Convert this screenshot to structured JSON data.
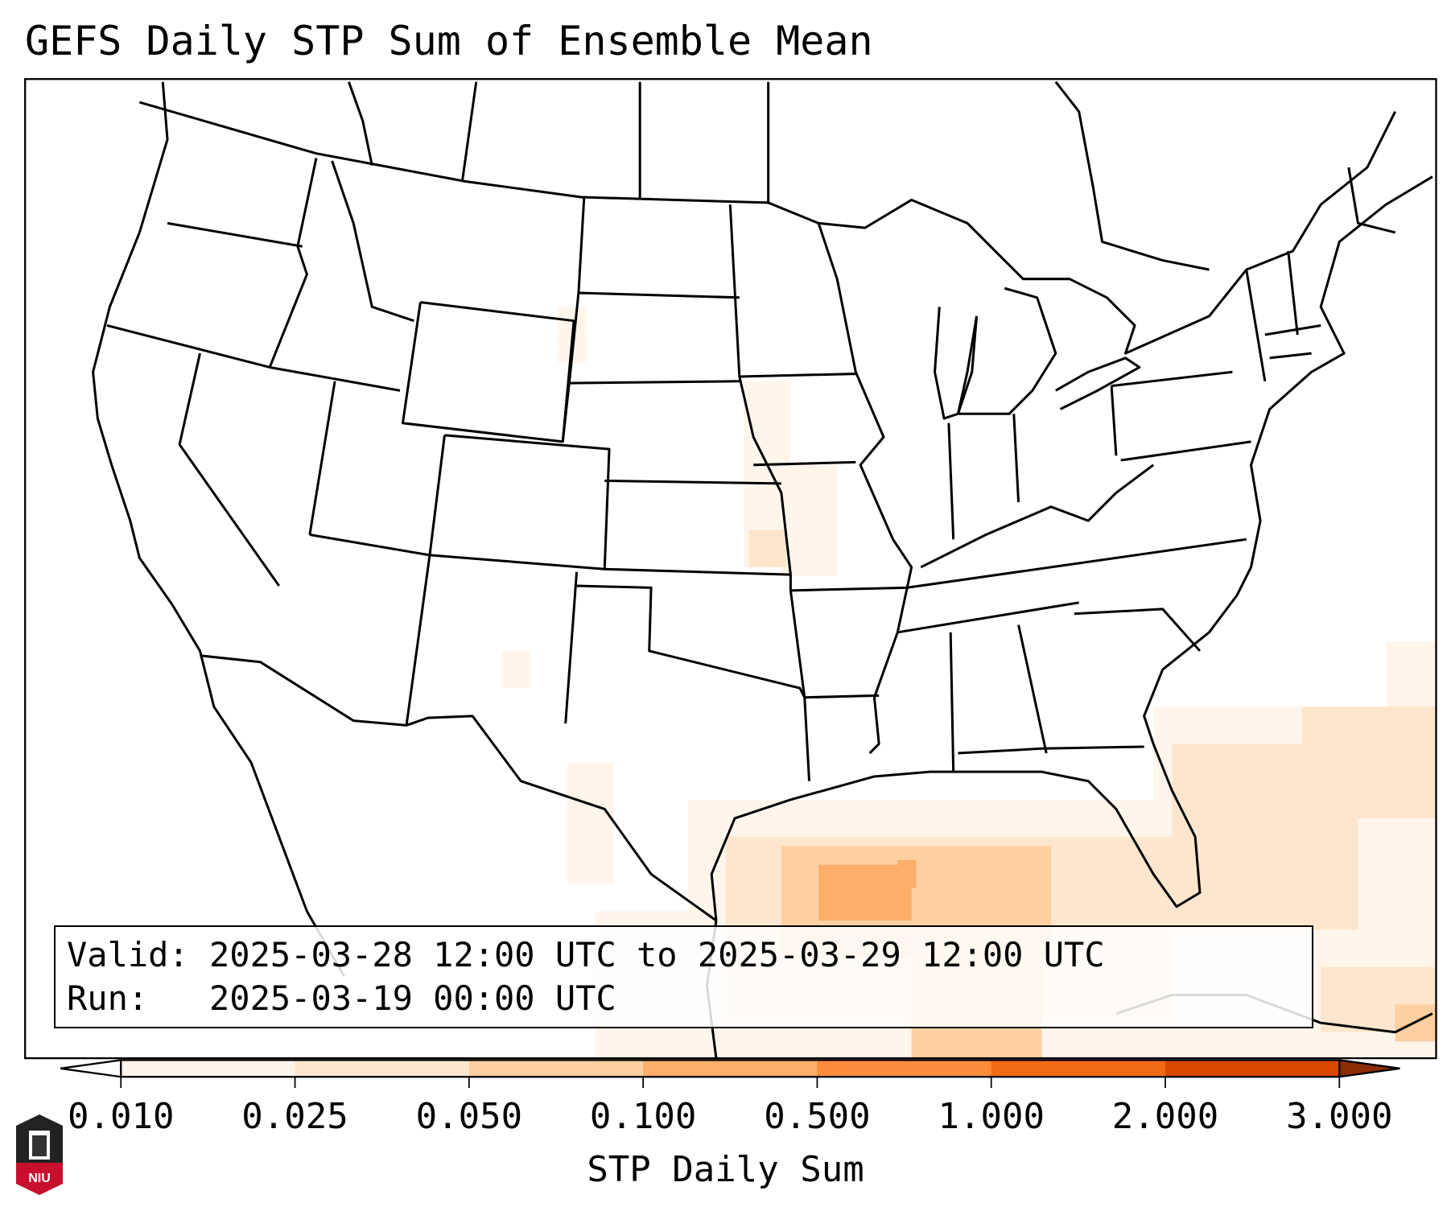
{
  "title": "GEFS Daily STP Sum of Ensemble Mean",
  "info": {
    "valid_label": "Valid:",
    "valid_value": "2025-03-28 12:00 UTC to 2025-03-29 12:00 UTC",
    "run_label": "Run:",
    "run_value": "2025-03-19 00:00 UTC"
  },
  "colorbar": {
    "label": "STP Daily Sum",
    "ticks": [
      "0.010",
      "0.025",
      "0.050",
      "0.100",
      "0.500",
      "1.000",
      "2.000",
      "3.000"
    ],
    "colors": [
      "#fff5eb",
      "#fee6ce",
      "#fdd0a2",
      "#fdae6b",
      "#fd8d3c",
      "#f16913",
      "#d94801"
    ],
    "under_color": "#ffffff",
    "over_color": "#8c2d04"
  },
  "logo": {
    "text": "NIU"
  }
}
